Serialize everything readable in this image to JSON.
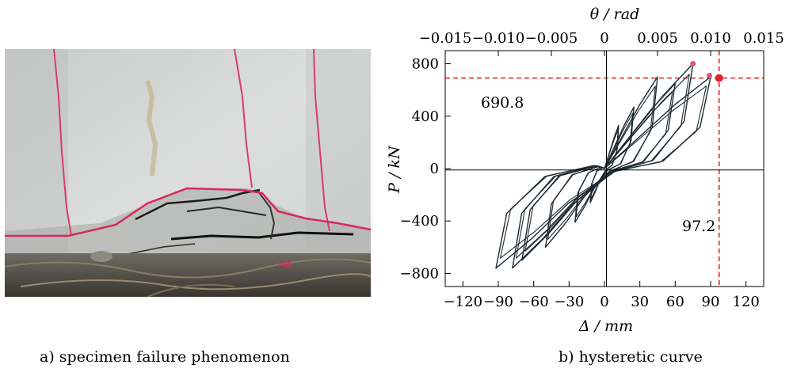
{
  "panels": {
    "a": {
      "caption": "a) specimen failure phenomenon"
    },
    "b": {
      "caption": "b) hysteretic curve"
    }
  },
  "chart_data": {
    "type": "line",
    "xlabel": "Δ / mm",
    "ylabel": "P / kN",
    "top_axis_label": "θ / rad",
    "xlim": [
      -135,
      135
    ],
    "ylim": [
      -900,
      900
    ],
    "x_ticks": [
      -120,
      -90,
      -60,
      -30,
      0,
      30,
      60,
      90,
      120
    ],
    "x_tick_labels": [
      "−120",
      "−90",
      "−60",
      "−30",
      "0",
      "30",
      "60",
      "90",
      "120"
    ],
    "y_ticks": [
      -800,
      -400,
      0,
      400,
      800
    ],
    "y_tick_labels": [
      "−800",
      "−400",
      "0",
      "400",
      "800"
    ],
    "top_ticks": [
      -0.015,
      -0.01,
      -0.005,
      0,
      0.005,
      0.01,
      0.015
    ],
    "top_tick_labels": [
      "−0.015",
      "−0.010",
      "−0.005",
      "0",
      "0.005",
      "0.010",
      "0.015"
    ],
    "top_axis_scale_mm_per_rad": 9000,
    "grid": false,
    "line_color": "#1f2a30",
    "reference_color": "#e0202a",
    "loops": [
      {
        "dmax": 12,
        "pmax": 330,
        "dmin": -12,
        "pmin": -260
      },
      {
        "dmax": 25,
        "pmax": 470,
        "dmin": -25,
        "pmin": -410
      },
      {
        "dmax": 45,
        "pmax": 700,
        "dmin": -50,
        "pmin": -600
      },
      {
        "dmax": 60,
        "pmax": 650,
        "dmin": -70,
        "pmin": -700
      },
      {
        "dmax": 75,
        "pmax": 800,
        "dmin": -78,
        "pmin": -760
      },
      {
        "dmax": 90,
        "pmax": 700,
        "dmin": -92,
        "pmin": -760
      }
    ],
    "peak_points": [
      {
        "x": 75,
        "y": 800
      },
      {
        "x": 89,
        "y": 710
      }
    ],
    "reference": {
      "x": 97.2,
      "y": 690.8,
      "x_label": "97.2",
      "y_label": "690.8"
    }
  }
}
